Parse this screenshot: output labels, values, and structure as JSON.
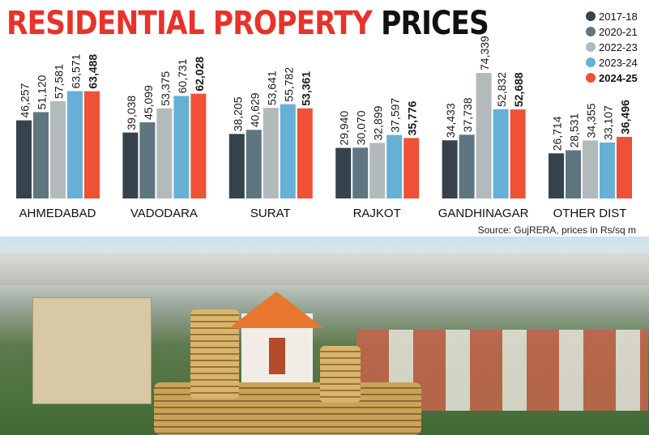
{
  "title": {
    "part1": "RESIDENTIAL PROPERTY",
    "part2": "PRICES"
  },
  "source": "Source: GujRERA, prices in Rs/sq m",
  "chart_data": {
    "type": "bar",
    "title": "RESIDENTIAL PROPERTY PRICES",
    "categories": [
      "AHMEDABAD",
      "VADODARA",
      "SURAT",
      "RAJKOT",
      "GANDHINAGAR",
      "OTHER DIST"
    ],
    "series": [
      {
        "name": "2017-18",
        "color": "#36434c",
        "values": [
          46257,
          39038,
          38205,
          29940,
          34433,
          26714
        ],
        "labels": [
          "46,257",
          "39,038",
          "38,205",
          "29,940",
          "34,433",
          "26,714"
        ]
      },
      {
        "name": "2020-21",
        "color": "#5f7680",
        "values": [
          51120,
          45099,
          40629,
          30070,
          37738,
          28531
        ],
        "labels": [
          "51,120",
          "45,099",
          "40,629",
          "30,070",
          "37,738",
          "28,531"
        ]
      },
      {
        "name": "2022-23",
        "color": "#b2babb",
        "values": [
          57581,
          53375,
          53641,
          32899,
          74339,
          34355
        ],
        "labels": [
          "57,581",
          "53,375",
          "53,641",
          "32,899",
          "74,339",
          "34,355"
        ]
      },
      {
        "name": "2023-24",
        "color": "#66b0d6",
        "values": [
          63571,
          60731,
          55782,
          37597,
          52832,
          33107
        ],
        "labels": [
          "63,571",
          "60,731",
          "55,782",
          "37,597",
          "52,832",
          "33,107"
        ]
      },
      {
        "name": "2024-25",
        "color": "#ee5136",
        "values": [
          63488,
          62028,
          53361,
          35776,
          52688,
          36496
        ],
        "labels": [
          "63,488",
          "62,028",
          "53,361",
          "35,776",
          "52,688",
          "36,496"
        ]
      }
    ],
    "ylim": [
      0,
      74339
    ],
    "grid": false,
    "legend": "top-right",
    "data_labels": "rotated, above bars"
  }
}
